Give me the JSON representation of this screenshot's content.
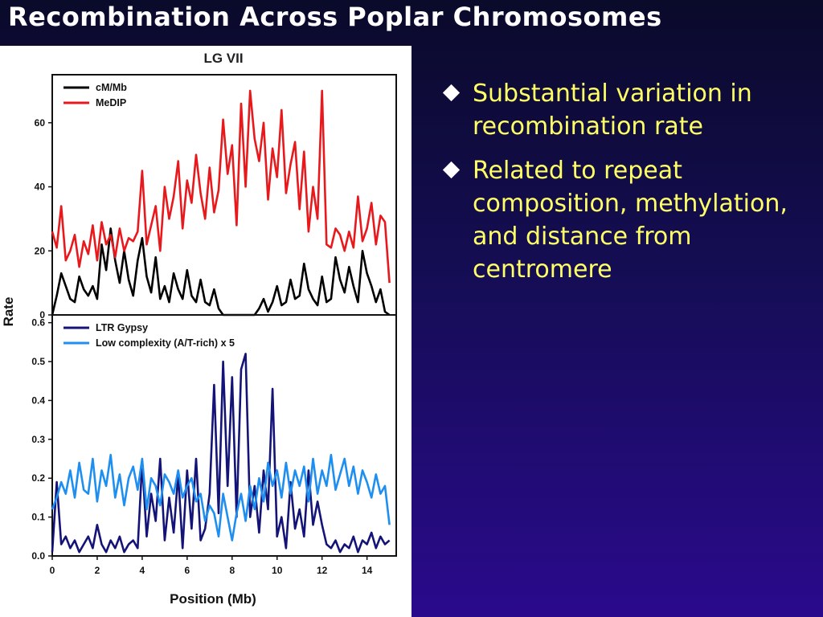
{
  "slide": {
    "title": "Recombination Across Poplar Chromosomes",
    "bullets": [
      "Substantial variation in recombination rate",
      "Related to repeat composition, methylation, and distance from centromere"
    ]
  },
  "colors": {
    "title_text": "#ffffff",
    "bullet_text": "#ffff66",
    "bullet_marker": "#ffffff",
    "series_cm_mb": "#000000",
    "series_medip": "#e8191c",
    "series_ltr_gypsy": "#141478",
    "series_low_complexity": "#1e8ff0"
  },
  "chart_data": [
    {
      "type": "line",
      "title": "LG VII",
      "xlabel": "",
      "ylabel": "Rate",
      "xlim": [
        0,
        15.3
      ],
      "ylim": [
        0,
        75
      ],
      "yticks": [
        0,
        20,
        40,
        60
      ],
      "legend_position": "top-left",
      "series": [
        {
          "name": "cM/Mb",
          "x": [
            0.0,
            0.2,
            0.4,
            0.6,
            0.8,
            1.0,
            1.2,
            1.4,
            1.6,
            1.8,
            2.0,
            2.2,
            2.4,
            2.6,
            2.8,
            3.0,
            3.2,
            3.4,
            3.6,
            3.8,
            4.0,
            4.2,
            4.4,
            4.6,
            4.8,
            5.0,
            5.2,
            5.4,
            5.6,
            5.8,
            6.0,
            6.2,
            6.4,
            6.6,
            6.8,
            7.0,
            7.2,
            7.4,
            7.6,
            7.8,
            8.0,
            8.2,
            8.4,
            8.6,
            8.8,
            9.0,
            9.2,
            9.4,
            9.6,
            9.8,
            10.0,
            10.2,
            10.4,
            10.6,
            10.8,
            11.0,
            11.2,
            11.4,
            11.6,
            11.8,
            12.0,
            12.2,
            12.4,
            12.6,
            12.8,
            13.0,
            13.2,
            13.4,
            13.6,
            13.8,
            14.0,
            14.2,
            14.4,
            14.6,
            14.8,
            15.0
          ],
          "values": [
            0,
            6,
            13,
            9,
            5,
            4,
            12,
            8,
            6,
            9,
            5,
            22,
            14,
            27,
            17,
            10,
            20,
            11,
            6,
            17,
            24,
            12,
            7,
            18,
            5,
            9,
            4,
            13,
            8,
            5,
            14,
            6,
            4,
            11,
            4,
            3,
            8,
            2,
            0,
            0,
            0,
            0,
            0,
            0,
            0,
            0,
            2,
            5,
            1,
            4,
            9,
            3,
            4,
            11,
            5,
            6,
            16,
            8,
            5,
            3,
            12,
            4,
            5,
            18,
            11,
            7,
            15,
            9,
            4,
            20,
            13,
            9,
            4,
            8,
            1,
            0
          ]
        },
        {
          "name": "MeDIP",
          "x": [
            0.0,
            0.2,
            0.4,
            0.6,
            0.8,
            1.0,
            1.2,
            1.4,
            1.6,
            1.8,
            2.0,
            2.2,
            2.4,
            2.6,
            2.8,
            3.0,
            3.2,
            3.4,
            3.6,
            3.8,
            4.0,
            4.2,
            4.4,
            4.6,
            4.8,
            5.0,
            5.2,
            5.4,
            5.6,
            5.8,
            6.0,
            6.2,
            6.4,
            6.6,
            6.8,
            7.0,
            7.2,
            7.4,
            7.6,
            7.8,
            8.0,
            8.2,
            8.4,
            8.6,
            8.8,
            9.0,
            9.2,
            9.4,
            9.6,
            9.8,
            10.0,
            10.2,
            10.4,
            10.6,
            10.8,
            11.0,
            11.2,
            11.4,
            11.6,
            11.8,
            12.0,
            12.2,
            12.4,
            12.6,
            12.8,
            13.0,
            13.2,
            13.4,
            13.6,
            13.8,
            14.0,
            14.2,
            14.4,
            14.6,
            14.8,
            15.0
          ],
          "values": [
            26,
            21,
            34,
            17,
            20,
            25,
            15,
            23,
            19,
            28,
            17,
            29,
            22,
            25,
            18,
            27,
            20,
            24,
            23,
            26,
            45,
            22,
            28,
            34,
            20,
            40,
            30,
            37,
            48,
            27,
            42,
            35,
            50,
            38,
            30,
            46,
            32,
            39,
            61,
            44,
            53,
            28,
            66,
            40,
            70,
            55,
            48,
            60,
            36,
            52,
            43,
            64,
            38,
            47,
            54,
            33,
            51,
            26,
            40,
            30,
            70,
            22,
            21,
            27,
            25,
            20,
            26,
            21,
            37,
            23,
            27,
            35,
            22,
            31,
            29,
            10
          ]
        }
      ]
    },
    {
      "type": "line",
      "title": "",
      "xlabel": "Position (Mb)",
      "ylabel": "Rate",
      "xlim": [
        0,
        15.3
      ],
      "ylim": [
        0,
        0.62
      ],
      "xticks": [
        0,
        2,
        4,
        6,
        8,
        10,
        12,
        14
      ],
      "yticks": [
        0.0,
        0.1,
        0.2,
        0.3,
        0.4,
        0.5,
        0.6
      ],
      "legend_position": "top-left",
      "series": [
        {
          "name": "LTR Gypsy",
          "x": [
            0.0,
            0.2,
            0.4,
            0.6,
            0.8,
            1.0,
            1.2,
            1.4,
            1.6,
            1.8,
            2.0,
            2.2,
            2.4,
            2.6,
            2.8,
            3.0,
            3.2,
            3.4,
            3.6,
            3.8,
            4.0,
            4.2,
            4.4,
            4.6,
            4.8,
            5.0,
            5.2,
            5.4,
            5.6,
            5.8,
            6.0,
            6.2,
            6.4,
            6.6,
            6.8,
            7.0,
            7.2,
            7.4,
            7.6,
            7.8,
            8.0,
            8.2,
            8.4,
            8.6,
            8.8,
            9.0,
            9.2,
            9.4,
            9.6,
            9.8,
            10.0,
            10.2,
            10.4,
            10.6,
            10.8,
            11.0,
            11.2,
            11.4,
            11.6,
            11.8,
            12.0,
            12.2,
            12.4,
            12.6,
            12.8,
            13.0,
            13.2,
            13.4,
            13.6,
            13.8,
            14.0,
            14.2,
            14.4,
            14.6,
            14.8,
            15.0
          ],
          "values": [
            0.01,
            0.19,
            0.03,
            0.05,
            0.02,
            0.04,
            0.01,
            0.03,
            0.05,
            0.02,
            0.08,
            0.03,
            0.01,
            0.04,
            0.02,
            0.05,
            0.01,
            0.03,
            0.04,
            0.02,
            0.24,
            0.05,
            0.16,
            0.09,
            0.25,
            0.04,
            0.15,
            0.06,
            0.21,
            0.02,
            0.22,
            0.07,
            0.25,
            0.04,
            0.07,
            0.16,
            0.44,
            0.11,
            0.5,
            0.18,
            0.46,
            0.1,
            0.48,
            0.52,
            0.1,
            0.18,
            0.06,
            0.22,
            0.12,
            0.43,
            0.05,
            0.1,
            0.02,
            0.19,
            0.07,
            0.12,
            0.05,
            0.22,
            0.08,
            0.14,
            0.08,
            0.03,
            0.02,
            0.04,
            0.01,
            0.03,
            0.02,
            0.05,
            0.01,
            0.04,
            0.03,
            0.06,
            0.02,
            0.05,
            0.03,
            0.04
          ]
        },
        {
          "name": "Low complexity (A/T-rich) x 5",
          "x": [
            0.0,
            0.2,
            0.4,
            0.6,
            0.8,
            1.0,
            1.2,
            1.4,
            1.6,
            1.8,
            2.0,
            2.2,
            2.4,
            2.6,
            2.8,
            3.0,
            3.2,
            3.4,
            3.6,
            3.8,
            4.0,
            4.2,
            4.4,
            4.6,
            4.8,
            5.0,
            5.2,
            5.4,
            5.6,
            5.8,
            6.0,
            6.2,
            6.4,
            6.6,
            6.8,
            7.0,
            7.2,
            7.4,
            7.6,
            7.8,
            8.0,
            8.2,
            8.4,
            8.6,
            8.8,
            9.0,
            9.2,
            9.4,
            9.6,
            9.8,
            10.0,
            10.2,
            10.4,
            10.6,
            10.8,
            11.0,
            11.2,
            11.4,
            11.6,
            11.8,
            12.0,
            12.2,
            12.4,
            12.6,
            12.8,
            13.0,
            13.2,
            13.4,
            13.6,
            13.8,
            14.0,
            14.2,
            14.4,
            14.6,
            14.8,
            15.0
          ],
          "values": [
            0.12,
            0.15,
            0.19,
            0.16,
            0.22,
            0.15,
            0.24,
            0.17,
            0.16,
            0.25,
            0.14,
            0.22,
            0.18,
            0.26,
            0.15,
            0.21,
            0.13,
            0.2,
            0.23,
            0.17,
            0.25,
            0.12,
            0.2,
            0.18,
            0.13,
            0.21,
            0.19,
            0.16,
            0.22,
            0.15,
            0.18,
            0.2,
            0.14,
            0.16,
            0.09,
            0.13,
            0.11,
            0.05,
            0.16,
            0.1,
            0.04,
            0.11,
            0.16,
            0.09,
            0.18,
            0.12,
            0.2,
            0.14,
            0.24,
            0.18,
            0.22,
            0.15,
            0.24,
            0.16,
            0.22,
            0.18,
            0.23,
            0.14,
            0.25,
            0.16,
            0.22,
            0.18,
            0.26,
            0.17,
            0.21,
            0.25,
            0.18,
            0.23,
            0.16,
            0.22,
            0.19,
            0.15,
            0.21,
            0.16,
            0.18,
            0.08
          ]
        }
      ]
    }
  ]
}
